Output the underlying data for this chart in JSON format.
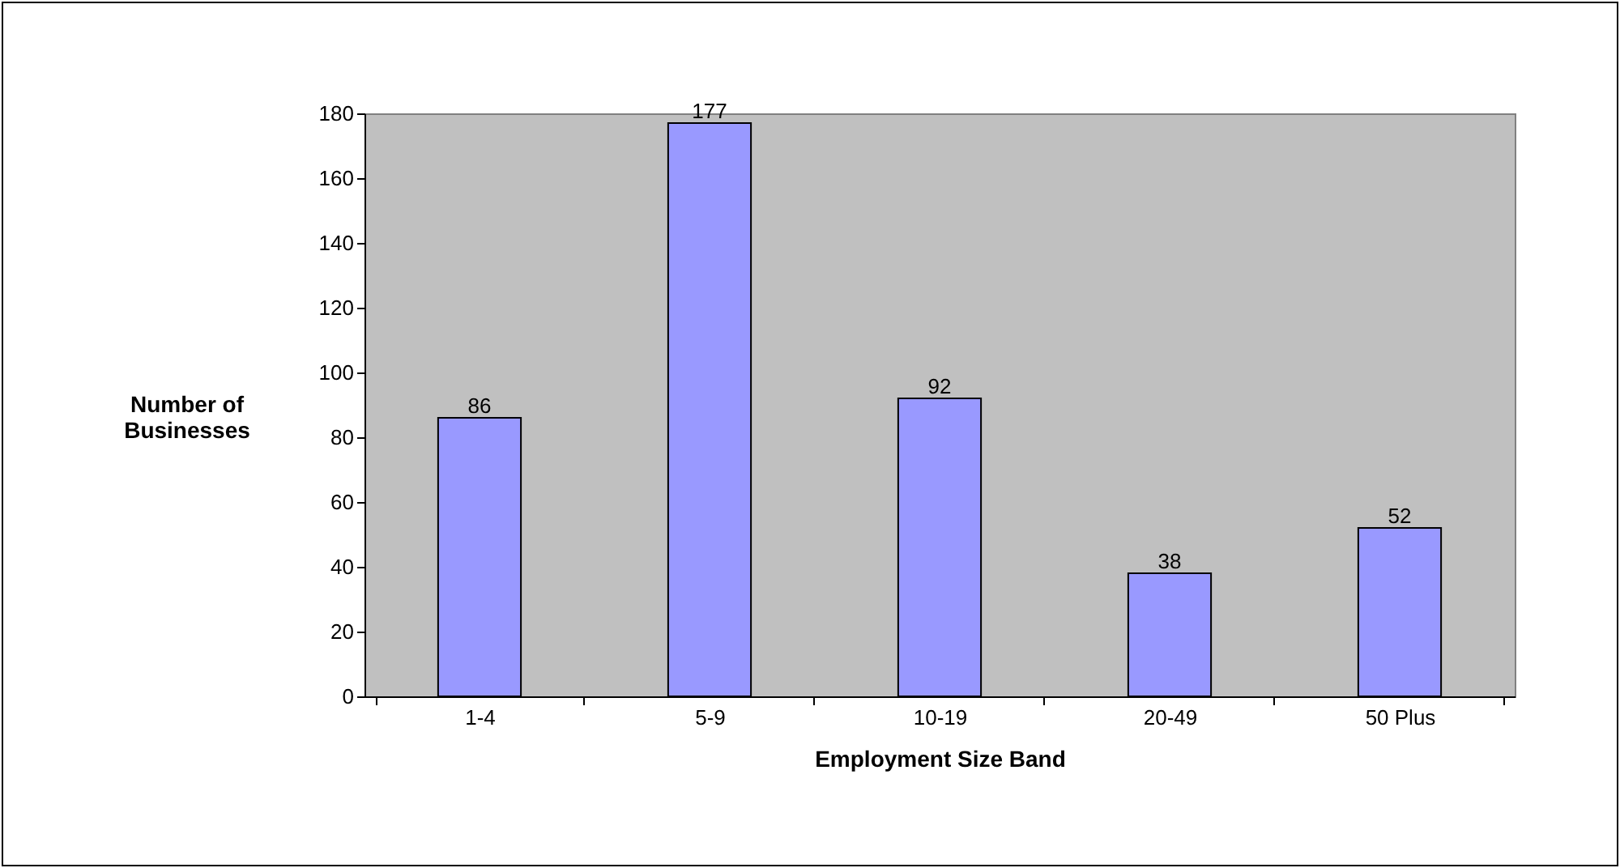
{
  "chart_data": {
    "type": "bar",
    "xlabel": "Employment Size Band",
    "ylabel": "Number of Businesses",
    "categories": [
      "1-4",
      "5-9",
      "10-19",
      "20-49",
      "50 Plus"
    ],
    "values": [
      86,
      177,
      92,
      38,
      52
    ],
    "color": "#9999ff",
    "ylim": [
      0,
      180
    ],
    "yticks": [
      0,
      20,
      40,
      60,
      80,
      100,
      120,
      140,
      160,
      180
    ],
    "data_labels": true,
    "grid": false
  }
}
